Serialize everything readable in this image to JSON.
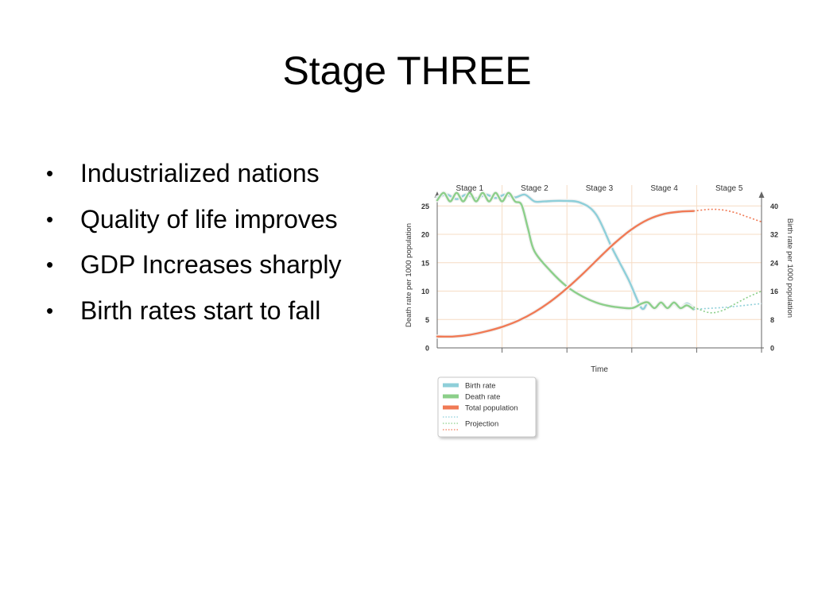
{
  "slide": {
    "title": "Stage THREE",
    "bullets": [
      "Industrialized nations",
      "Quality of life improves",
      "GDP Increases sharply",
      "Birth rates start to fall"
    ]
  },
  "chart_data": {
    "type": "line",
    "stages": [
      "Stage 1",
      "Stage 2",
      "Stage 3",
      "Stage 4",
      "Stage 5"
    ],
    "xlabel": "Time",
    "ylabel_left": "Death rate per 1000 population",
    "ylabel_right": "Birth rate per 1000 population",
    "y_left": {
      "ticks": [
        0,
        5,
        10,
        15,
        20,
        25
      ],
      "lim": [
        0,
        27
      ]
    },
    "y_right": {
      "ticks": [
        0,
        8,
        16,
        24,
        32,
        40
      ],
      "lim": [
        0,
        43.2
      ]
    },
    "x_range": [
      0,
      100
    ],
    "grid": true,
    "colors": {
      "birth": "#8ecfd9",
      "death": "#8ccf8a",
      "population": "#f07a55"
    },
    "series": [
      {
        "name": "Birth rate",
        "axis": "left",
        "x": [
          0,
          3,
          6,
          9,
          12,
          15,
          18,
          21,
          24,
          27,
          30,
          33,
          38,
          44,
          49,
          54,
          59,
          63,
          65,
          67,
          69,
          71,
          73,
          75,
          77,
          79
        ],
        "values": [
          26.5,
          27.0,
          26.2,
          27.0,
          26.3,
          27.0,
          26.4,
          27.0,
          26.5,
          27.0,
          25.8,
          25.8,
          25.9,
          25.6,
          23.5,
          17.5,
          12.0,
          7.0,
          8.0,
          7.0,
          7.8,
          7.0,
          7.8,
          7.0,
          7.8,
          7.0
        ]
      },
      {
        "name": "Death rate",
        "axis": "left",
        "x": [
          0,
          2,
          4,
          6,
          8,
          10,
          12,
          14,
          16,
          18,
          20,
          22,
          24,
          26,
          28,
          30,
          35,
          40,
          45,
          50,
          55,
          60,
          63,
          65,
          67,
          69,
          71,
          73,
          75,
          77,
          79
        ],
        "values": [
          26.0,
          27.3,
          25.8,
          27.3,
          25.8,
          27.3,
          25.8,
          27.3,
          25.8,
          27.3,
          25.8,
          27.3,
          25.8,
          25.2,
          21.0,
          17.0,
          13.5,
          10.8,
          9.0,
          7.8,
          7.2,
          7.0,
          7.8,
          8.0,
          7.0,
          8.0,
          7.0,
          8.0,
          7.0,
          7.5,
          6.8
        ]
      },
      {
        "name": "Total population",
        "axis": "left",
        "x": [
          0,
          5,
          10,
          15,
          20,
          25,
          30,
          35,
          40,
          45,
          50,
          55,
          60,
          65,
          70,
          75,
          79
        ],
        "values": [
          2.0,
          2.0,
          2.3,
          2.9,
          3.7,
          4.8,
          6.3,
          8.2,
          10.5,
          13.1,
          15.9,
          18.6,
          20.9,
          22.6,
          23.6,
          24.0,
          24.1
        ]
      }
    ],
    "projection": {
      "label": "Projection",
      "birth": {
        "x": [
          79,
          85,
          90,
          95,
          100
        ],
        "values": [
          6.8,
          7.0,
          7.2,
          7.5,
          7.8
        ]
      },
      "death": {
        "x": [
          79,
          84,
          88,
          92,
          96,
          100
        ],
        "values": [
          7.2,
          6.2,
          6.6,
          7.8,
          9.0,
          10.0
        ]
      },
      "population": {
        "x": [
          79,
          84,
          88,
          92,
          96,
          100
        ],
        "values": [
          24.1,
          24.4,
          24.3,
          23.8,
          23.0,
          22.2
        ]
      }
    },
    "legend": {
      "position": "bottom-left",
      "items": [
        "Birth rate",
        "Death rate",
        "Total population",
        "Projection"
      ]
    }
  }
}
